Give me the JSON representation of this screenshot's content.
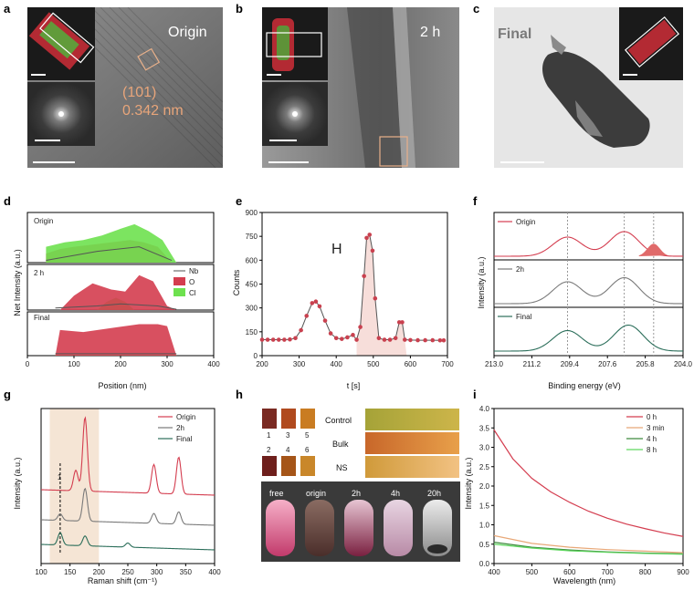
{
  "figure": {
    "panel_labels": [
      "a",
      "b",
      "c",
      "d",
      "e",
      "f",
      "g",
      "h",
      "i"
    ],
    "a": {
      "title": "Origin",
      "plane": "(101)",
      "spacing": "0.342 nm"
    },
    "b": {
      "title": "2 h"
    },
    "c": {
      "title": "Final"
    },
    "colors": {
      "red": "#d43d4f",
      "green": "#6ee14f",
      "gray": "#8a8a8a",
      "teal": "#2b6e5a",
      "peach": "#e08a5c"
    }
  },
  "chart_data": [
    {
      "id": "d",
      "type": "area",
      "xlabel": "Position (nm)",
      "ylabel": "Net Intensity (a.u.)",
      "xlim": [
        0,
        400
      ],
      "xticks": [
        0,
        100,
        200,
        300,
        400
      ],
      "legend": [
        "Nb",
        "O",
        "Cl"
      ],
      "subpanels": [
        {
          "label": "Origin",
          "O": [
            [
              40,
              0.2
            ],
            [
              70,
              0.3
            ],
            [
              100,
              0.35
            ],
            [
              140,
              0.4
            ],
            [
              180,
              0.45
            ],
            [
              220,
              0.5
            ],
            [
              250,
              0.45
            ],
            [
              280,
              0.35
            ],
            [
              310,
              0.0
            ]
          ],
          "Cl": [
            [
              40,
              0.35
            ],
            [
              80,
              0.45
            ],
            [
              120,
              0.5
            ],
            [
              160,
              0.6
            ],
            [
              200,
              0.75
            ],
            [
              230,
              0.85
            ],
            [
              260,
              0.7
            ],
            [
              290,
              0.5
            ],
            [
              320,
              0.0
            ]
          ],
          "Nb": [
            [
              40,
              0.05
            ],
            [
              150,
              0.25
            ],
            [
              240,
              0.35
            ],
            [
              310,
              0.05
            ]
          ]
        },
        {
          "label": "2 h",
          "O": [
            [
              70,
              0.0
            ],
            [
              100,
              0.35
            ],
            [
              140,
              0.65
            ],
            [
              180,
              0.5
            ],
            [
              210,
              0.45
            ],
            [
              240,
              0.85
            ],
            [
              270,
              0.7
            ],
            [
              300,
              0.1
            ],
            [
              320,
              0.0
            ]
          ],
          "Cl": [
            [
              150,
              0.0
            ],
            [
              170,
              0.2
            ],
            [
              190,
              0.3
            ],
            [
              210,
              0.2
            ],
            [
              230,
              0.0
            ]
          ],
          "Nb": [
            [
              60,
              0.05
            ],
            [
              150,
              0.1
            ],
            [
              200,
              0.15
            ],
            [
              280,
              0.1
            ],
            [
              320,
              0.02
            ]
          ]
        },
        {
          "label": "Final",
          "O": [
            [
              60,
              0.0
            ],
            [
              70,
              0.65
            ],
            [
              120,
              0.6
            ],
            [
              180,
              0.7
            ],
            [
              240,
              0.8
            ],
            [
              280,
              0.8
            ],
            [
              300,
              0.75
            ],
            [
              320,
              0.0
            ]
          ],
          "Cl": [
            [
              60,
              0.02
            ],
            [
              320,
              0.02
            ]
          ],
          "Nb": [
            [
              60,
              0.05
            ],
            [
              320,
              0.05
            ]
          ]
        }
      ]
    },
    {
      "id": "e",
      "type": "line",
      "ylabel": "Counts",
      "xlabel": "t [s]",
      "annotation": "H",
      "xlim": [
        200,
        700
      ],
      "ylim": [
        0,
        900
      ],
      "xticks": [
        200,
        300,
        400,
        500,
        600,
        700
      ],
      "yticks": [
        0,
        150,
        300,
        450,
        600,
        750,
        900
      ],
      "x": [
        200,
        215,
        230,
        245,
        260,
        275,
        290,
        305,
        320,
        335,
        345,
        355,
        370,
        385,
        400,
        415,
        430,
        445,
        455,
        465,
        475,
        482,
        490,
        498,
        505,
        515,
        530,
        545,
        560,
        570,
        578,
        585,
        600,
        620,
        640,
        660,
        680,
        690
      ],
      "y": [
        100,
        100,
        100,
        100,
        100,
        102,
        110,
        160,
        250,
        330,
        340,
        310,
        220,
        140,
        110,
        105,
        115,
        130,
        100,
        180,
        500,
        740,
        760,
        660,
        360,
        110,
        100,
        100,
        110,
        210,
        210,
        100,
        98,
        97,
        97,
        97,
        96,
        96
      ]
    },
    {
      "id": "f",
      "type": "line",
      "xlabel": "Binding energy (eV)",
      "ylabel": "Intensity (a.u.)",
      "xlim": [
        213.0,
        204.0
      ],
      "xticks": [
        213.0,
        211.2,
        209.4,
        207.6,
        205.8,
        204.0
      ],
      "vlines": [
        209.5,
        206.8,
        205.4
      ],
      "series": [
        {
          "name": "Origin",
          "peaks": [
            [
              209.5,
              0.7
            ],
            [
              206.8,
              0.9
            ],
            [
              205.4,
              0.55
            ]
          ]
        },
        {
          "name": "2h",
          "peaks": [
            [
              209.5,
              0.8
            ],
            [
              206.8,
              0.95
            ]
          ]
        },
        {
          "name": "Final",
          "peaks": [
            [
              209.5,
              0.75
            ],
            [
              206.6,
              0.95
            ]
          ]
        }
      ]
    },
    {
      "id": "g",
      "type": "line",
      "xlabel": "Raman shift (cm⁻¹)",
      "ylabel": "Intensity (a.u.)",
      "xlim": [
        100,
        400
      ],
      "xticks": [
        100,
        150,
        200,
        250,
        300,
        350,
        400
      ],
      "shaded_range": [
        115,
        200
      ],
      "marker_x": 133,
      "marker_label": "1",
      "series": [
        {
          "name": "Origin",
          "peaks": [
            [
              160,
              0.25
            ],
            [
              176,
              0.9
            ],
            [
              295,
              0.35
            ],
            [
              338,
              0.45
            ]
          ]
        },
        {
          "name": "2h",
          "peaks": [
            [
              133,
              0.08
            ],
            [
              176,
              0.4
            ],
            [
              295,
              0.12
            ],
            [
              338,
              0.15
            ]
          ]
        },
        {
          "name": "Final",
          "peaks": [
            [
              133,
              0.15
            ],
            [
              176,
              0.12
            ],
            [
              250,
              0.05
            ]
          ]
        }
      ]
    },
    {
      "id": "h",
      "type": "other",
      "swatch_numbers": [
        "1",
        "3",
        "5",
        "2",
        "4",
        "6"
      ],
      "rows": [
        "Control",
        "Bulk",
        "NS"
      ],
      "vials": [
        "free",
        "origin",
        "2h",
        "4h",
        "20h"
      ]
    },
    {
      "id": "i",
      "type": "line",
      "xlabel": "Wavelength (nm)",
      "ylabel": "Intensity (a.u.)",
      "xlim": [
        400,
        900
      ],
      "ylim": [
        0,
        4.0
      ],
      "xticks": [
        400,
        500,
        600,
        700,
        800,
        900
      ],
      "yticks": [
        0.0,
        0.5,
        1.0,
        1.5,
        2.0,
        2.5,
        3.0,
        3.5,
        4.0
      ],
      "series": [
        {
          "name": "0 h",
          "x": [
            400,
            450,
            500,
            550,
            600,
            650,
            700,
            750,
            800,
            850,
            900
          ],
          "y": [
            3.45,
            2.7,
            2.2,
            1.85,
            1.58,
            1.35,
            1.17,
            1.02,
            0.9,
            0.79,
            0.7
          ]
        },
        {
          "name": "3 min",
          "x": [
            400,
            500,
            600,
            700,
            800,
            900
          ],
          "y": [
            0.72,
            0.52,
            0.42,
            0.36,
            0.32,
            0.28
          ]
        },
        {
          "name": "4 h",
          "x": [
            400,
            500,
            600,
            700,
            800,
            900
          ],
          "y": [
            0.55,
            0.42,
            0.35,
            0.3,
            0.27,
            0.25
          ]
        },
        {
          "name": "8 h",
          "x": [
            400,
            500,
            600,
            700,
            800,
            900
          ],
          "y": [
            0.5,
            0.4,
            0.33,
            0.29,
            0.26,
            0.24
          ]
        }
      ]
    }
  ]
}
